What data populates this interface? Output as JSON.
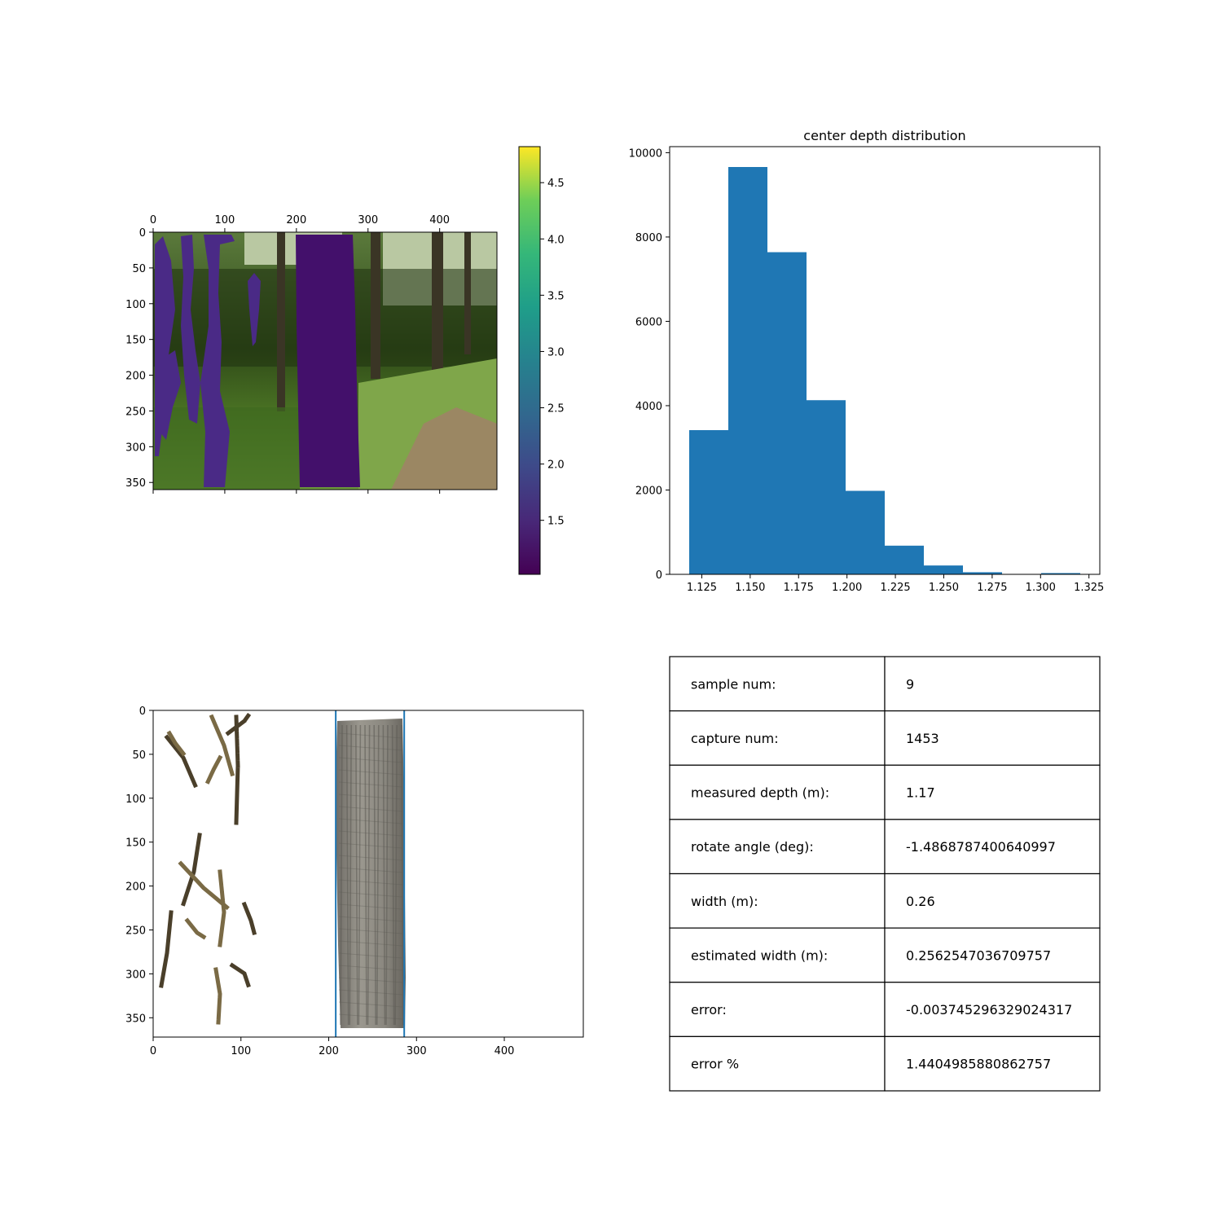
{
  "chart_data": [
    {
      "type": "image",
      "panel": "depth overlay on photo",
      "x_ticks": [
        0,
        100,
        200,
        300,
        400
      ],
      "y_ticks": [
        0,
        50,
        100,
        150,
        200,
        250,
        300,
        350
      ],
      "xlim": [
        0,
        480
      ],
      "ylim": [
        360,
        0
      ],
      "colorbar": {
        "colormap": "viridis",
        "range": [
          1.02,
          4.82
        ],
        "ticks": [
          "1.5",
          "2.0",
          "2.5",
          "3.0",
          "3.5",
          "4.0",
          "4.5"
        ],
        "tick_values": [
          1.5,
          2.0,
          2.5,
          3.0,
          3.5,
          4.0,
          4.5
        ]
      },
      "colors": {
        "depth_overlay": "#43106b",
        "sky": "#b9c8a2",
        "foliage_dark": "#1f3210",
        "foliage": "#3f6a1f",
        "grass": "#7fa64a",
        "path": "#9b8763"
      }
    },
    {
      "type": "bar",
      "title": "center depth distribution",
      "xlabel": "",
      "ylabel": "",
      "bin_edges": [
        1.1185,
        1.1387,
        1.1589,
        1.1791,
        1.1993,
        1.2195,
        1.2397,
        1.2599,
        1.2801,
        1.3003,
        1.3205
      ],
      "values": [
        3420,
        9660,
        7640,
        4130,
        1980,
        680,
        210,
        50,
        0,
        30
      ],
      "x_ticks": [
        "1.125",
        "1.150",
        "1.175",
        "1.200",
        "1.225",
        "1.250",
        "1.275",
        "1.300",
        "1.325"
      ],
      "x_tick_values": [
        1.125,
        1.15,
        1.175,
        1.2,
        1.225,
        1.25,
        1.275,
        1.3,
        1.325
      ],
      "y_ticks": [
        "0",
        "2000",
        "4000",
        "6000",
        "8000",
        "10000"
      ],
      "y_tick_values": [
        0,
        2000,
        4000,
        6000,
        8000,
        10000
      ],
      "xlim": [
        1.1084,
        1.3306
      ],
      "ylim": [
        0,
        10143
      ],
      "color": "#1f77b4"
    },
    {
      "type": "image",
      "panel": "segmented trunk with width lines",
      "x_ticks": [
        0,
        100,
        200,
        300,
        400
      ],
      "y_ticks": [
        0,
        50,
        100,
        150,
        200,
        250,
        300,
        350
      ],
      "xlim": [
        0,
        490
      ],
      "ylim": [
        372,
        0
      ],
      "vertical_lines": [
        208,
        286
      ],
      "line_color": "#1f77b4",
      "colors": {
        "bark": "#8a8780",
        "bark_dark": "#5d5b55",
        "twig": "#7a6a45",
        "twig_dark": "#4a3f2a"
      }
    },
    {
      "type": "table",
      "rows": [
        {
          "label": "sample num:",
          "value": "9"
        },
        {
          "label": "capture num:",
          "value": "1453"
        },
        {
          "label": "measured depth (m):",
          "value": "1.17"
        },
        {
          "label": "rotate angle (deg):",
          "value": "-1.4868787400640997"
        },
        {
          "label": "width (m):",
          "value": "0.26"
        },
        {
          "label": "estimated width (m):",
          "value": "0.2562547036709757"
        },
        {
          "label": "error:",
          "value": "-0.003745296329024317"
        },
        {
          "label": "error %",
          "value": "1.4404985880862757"
        }
      ]
    }
  ]
}
